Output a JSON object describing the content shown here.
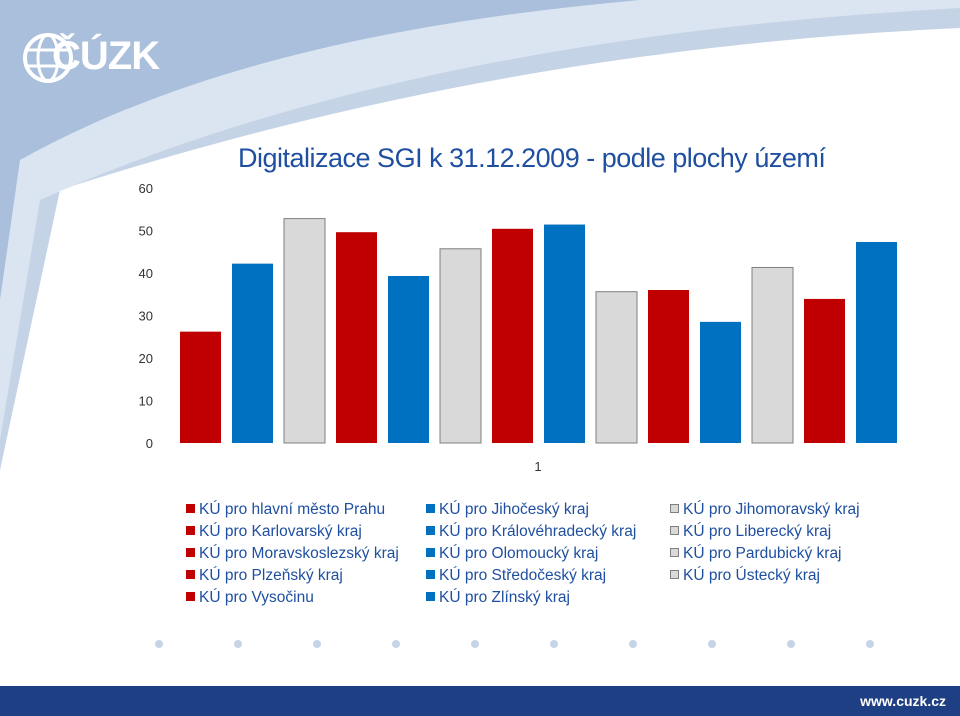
{
  "logo": {
    "text": "ČÚZK"
  },
  "footer": {
    "url": "www.cuzk.cz"
  },
  "colors": {
    "red": "#c00000",
    "blue": "#0070c0",
    "gray": "#d9d9d9",
    "accent": "#1f4fa0",
    "footer": "#1f3f84"
  },
  "chart_data": {
    "type": "bar",
    "title": "Digitalizace SGI  k 31.12.2009 - podle plochy území",
    "categories": [
      "1"
    ],
    "ylim": [
      0,
      60
    ],
    "yticks": [
      "0",
      "10",
      "20",
      "30",
      "40",
      "50",
      "60"
    ],
    "grid": false,
    "legend_position": "bottom",
    "series": [
      {
        "name": "KÚ pro hlavní město Prahu",
        "color": "red",
        "values": [
          26.2
        ]
      },
      {
        "name": "KÚ pro Jihočeský kraj",
        "color": "blue",
        "values": [
          42.2
        ]
      },
      {
        "name": "KÚ pro Jihomoravský kraj",
        "color": "gray",
        "values": [
          52.8
        ]
      },
      {
        "name": "KÚ pro Karlovarský kraj",
        "color": "red",
        "values": [
          49.6
        ]
      },
      {
        "name": "KÚ pro Královéhradecký kraj",
        "color": "blue",
        "values": [
          39.3
        ]
      },
      {
        "name": "KÚ pro Liberecký kraj",
        "color": "gray",
        "values": [
          45.7
        ]
      },
      {
        "name": "KÚ pro Moravskoslezský kraj",
        "color": "red",
        "values": [
          50.4
        ]
      },
      {
        "name": "KÚ pro Olomoucký kraj",
        "color": "blue",
        "values": [
          51.4
        ]
      },
      {
        "name": "KÚ pro Pardubický kraj",
        "color": "gray",
        "values": [
          35.6
        ]
      },
      {
        "name": "KÚ pro Plzeňský kraj",
        "color": "red",
        "values": [
          36.0
        ]
      },
      {
        "name": "KÚ pro Středočeský kraj",
        "color": "blue",
        "values": [
          28.5
        ]
      },
      {
        "name": "KÚ pro Ústecký kraj",
        "color": "gray",
        "values": [
          41.3
        ]
      },
      {
        "name": "KÚ pro Vysočinu",
        "color": "red",
        "values": [
          33.9
        ]
      },
      {
        "name": "KÚ pro Zlínský kraj",
        "color": "blue",
        "values": [
          47.3
        ]
      }
    ]
  }
}
